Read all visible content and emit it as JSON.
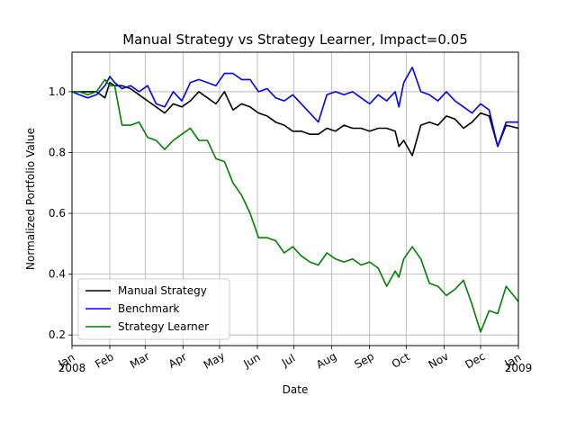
{
  "chart_data": {
    "type": "line",
    "title": "Manual Strategy vs Strategy Learner, Impact=0.05",
    "xlabel": "Date",
    "ylabel": "Normalized Portfolio Value",
    "grid": true,
    "legend_position": "lower-left",
    "x_ticks": [
      "2008-01-01",
      "2008-02-01",
      "2008-03-01",
      "2008-04-01",
      "2008-05-01",
      "2008-06-01",
      "2008-07-01",
      "2008-08-01",
      "2008-09-01",
      "2008-10-01",
      "2008-11-01",
      "2008-12-01",
      "2009-01-01"
    ],
    "x_tick_labels": [
      "Jan",
      "Feb",
      "Mar",
      "Apr",
      "May",
      "Jun",
      "Jul",
      "Aug",
      "Sep",
      "Oct",
      "Nov",
      "Dec",
      "Jan"
    ],
    "x_year_labels": [
      {
        "date": "2008-01-01",
        "text": "2008"
      },
      {
        "date": "2009-01-01",
        "text": "2009"
      }
    ],
    "xlim": [
      "2008-01-01",
      "2009-01-01"
    ],
    "y_ticks": [
      0.2,
      0.4,
      0.6,
      0.8,
      1.0
    ],
    "y_tick_labels": [
      "0.2",
      "0.4",
      "0.6",
      "0.8",
      "1.0"
    ],
    "ylim": [
      0.165,
      1.13
    ],
    "series": [
      {
        "name": "Manual Strategy",
        "color": "#000000",
        "x": [
          "2008-01-01",
          "2008-01-07",
          "2008-01-14",
          "2008-01-21",
          "2008-01-28",
          "2008-02-01",
          "2008-02-05",
          "2008-02-11",
          "2008-02-18",
          "2008-02-25",
          "2008-03-03",
          "2008-03-10",
          "2008-03-17",
          "2008-03-24",
          "2008-03-31",
          "2008-04-07",
          "2008-04-14",
          "2008-04-21",
          "2008-04-28",
          "2008-05-05",
          "2008-05-12",
          "2008-05-19",
          "2008-05-26",
          "2008-06-02",
          "2008-06-09",
          "2008-06-16",
          "2008-06-23",
          "2008-06-30",
          "2008-07-07",
          "2008-07-14",
          "2008-07-21",
          "2008-07-28",
          "2008-08-04",
          "2008-08-11",
          "2008-08-18",
          "2008-08-25",
          "2008-09-01",
          "2008-09-08",
          "2008-09-15",
          "2008-09-22",
          "2008-09-25",
          "2008-09-29",
          "2008-10-06",
          "2008-10-13",
          "2008-10-20",
          "2008-10-27",
          "2008-11-03",
          "2008-11-10",
          "2008-11-17",
          "2008-11-24",
          "2008-12-01",
          "2008-12-08",
          "2008-12-15",
          "2008-12-22",
          "2009-01-01"
        ],
        "y": [
          1.0,
          1.0,
          1.0,
          1.0,
          0.98,
          1.03,
          1.02,
          1.02,
          1.01,
          0.99,
          0.97,
          0.95,
          0.93,
          0.96,
          0.95,
          0.97,
          1.0,
          0.98,
          0.96,
          1.0,
          0.94,
          0.96,
          0.95,
          0.93,
          0.92,
          0.9,
          0.89,
          0.87,
          0.87,
          0.86,
          0.86,
          0.88,
          0.87,
          0.89,
          0.88,
          0.88,
          0.87,
          0.88,
          0.88,
          0.87,
          0.82,
          0.84,
          0.79,
          0.89,
          0.9,
          0.89,
          0.92,
          0.91,
          0.88,
          0.9,
          0.93,
          0.92,
          0.82,
          0.89,
          0.88
        ]
      },
      {
        "name": "Benchmark",
        "color": "#0000ff",
        "x": [
          "2008-01-01",
          "2008-01-07",
          "2008-01-14",
          "2008-01-21",
          "2008-01-28",
          "2008-02-01",
          "2008-02-05",
          "2008-02-11",
          "2008-02-18",
          "2008-02-25",
          "2008-03-03",
          "2008-03-10",
          "2008-03-17",
          "2008-03-24",
          "2008-03-31",
          "2008-04-07",
          "2008-04-14",
          "2008-04-21",
          "2008-04-28",
          "2008-05-05",
          "2008-05-12",
          "2008-05-19",
          "2008-05-26",
          "2008-06-02",
          "2008-06-09",
          "2008-06-16",
          "2008-06-23",
          "2008-06-30",
          "2008-07-07",
          "2008-07-14",
          "2008-07-21",
          "2008-07-28",
          "2008-08-04",
          "2008-08-11",
          "2008-08-18",
          "2008-08-25",
          "2008-09-01",
          "2008-09-08",
          "2008-09-15",
          "2008-09-22",
          "2008-09-25",
          "2008-09-29",
          "2008-10-06",
          "2008-10-13",
          "2008-10-20",
          "2008-10-27",
          "2008-11-03",
          "2008-11-10",
          "2008-11-17",
          "2008-11-24",
          "2008-12-01",
          "2008-12-08",
          "2008-12-15",
          "2008-12-22",
          "2009-01-01"
        ],
        "y": [
          1.0,
          0.99,
          0.98,
          0.99,
          1.02,
          1.05,
          1.03,
          1.01,
          1.02,
          1.0,
          1.02,
          0.96,
          0.95,
          1.0,
          0.97,
          1.03,
          1.04,
          1.03,
          1.02,
          1.06,
          1.06,
          1.04,
          1.04,
          1.0,
          1.01,
          0.98,
          0.97,
          0.99,
          0.96,
          0.93,
          0.9,
          0.99,
          1.0,
          0.99,
          1.0,
          0.98,
          0.96,
          0.99,
          0.97,
          1.0,
          0.95,
          1.03,
          1.08,
          1.0,
          0.99,
          0.97,
          1.0,
          0.97,
          0.95,
          0.93,
          0.96,
          0.94,
          0.82,
          0.9,
          0.9
        ]
      },
      {
        "name": "Strategy Learner",
        "color": "#008000",
        "x": [
          "2008-01-01",
          "2008-01-07",
          "2008-01-14",
          "2008-01-21",
          "2008-01-28",
          "2008-02-01",
          "2008-02-05",
          "2008-02-11",
          "2008-02-18",
          "2008-02-25",
          "2008-03-03",
          "2008-03-10",
          "2008-03-17",
          "2008-03-24",
          "2008-03-31",
          "2008-04-07",
          "2008-04-14",
          "2008-04-21",
          "2008-04-28",
          "2008-05-05",
          "2008-05-12",
          "2008-05-19",
          "2008-05-26",
          "2008-06-02",
          "2008-06-09",
          "2008-06-16",
          "2008-06-23",
          "2008-06-30",
          "2008-07-07",
          "2008-07-14",
          "2008-07-21",
          "2008-07-28",
          "2008-08-04",
          "2008-08-11",
          "2008-08-18",
          "2008-08-25",
          "2008-09-01",
          "2008-09-08",
          "2008-09-15",
          "2008-09-22",
          "2008-09-25",
          "2008-09-29",
          "2008-10-06",
          "2008-10-13",
          "2008-10-20",
          "2008-10-27",
          "2008-11-03",
          "2008-11-10",
          "2008-11-17",
          "2008-11-24",
          "2008-12-01",
          "2008-12-08",
          "2008-12-15",
          "2008-12-22",
          "2009-01-01"
        ],
        "y": [
          1.0,
          1.0,
          0.99,
          1.0,
          1.04,
          1.02,
          1.02,
          0.89,
          0.89,
          0.9,
          0.85,
          0.84,
          0.81,
          0.84,
          0.86,
          0.88,
          0.84,
          0.84,
          0.78,
          0.77,
          0.7,
          0.66,
          0.6,
          0.52,
          0.52,
          0.51,
          0.47,
          0.49,
          0.46,
          0.44,
          0.43,
          0.47,
          0.45,
          0.44,
          0.45,
          0.43,
          0.44,
          0.42,
          0.36,
          0.41,
          0.39,
          0.45,
          0.49,
          0.45,
          0.37,
          0.36,
          0.33,
          0.35,
          0.38,
          0.3,
          0.21,
          0.28,
          0.27,
          0.36,
          0.31
        ]
      }
    ]
  }
}
